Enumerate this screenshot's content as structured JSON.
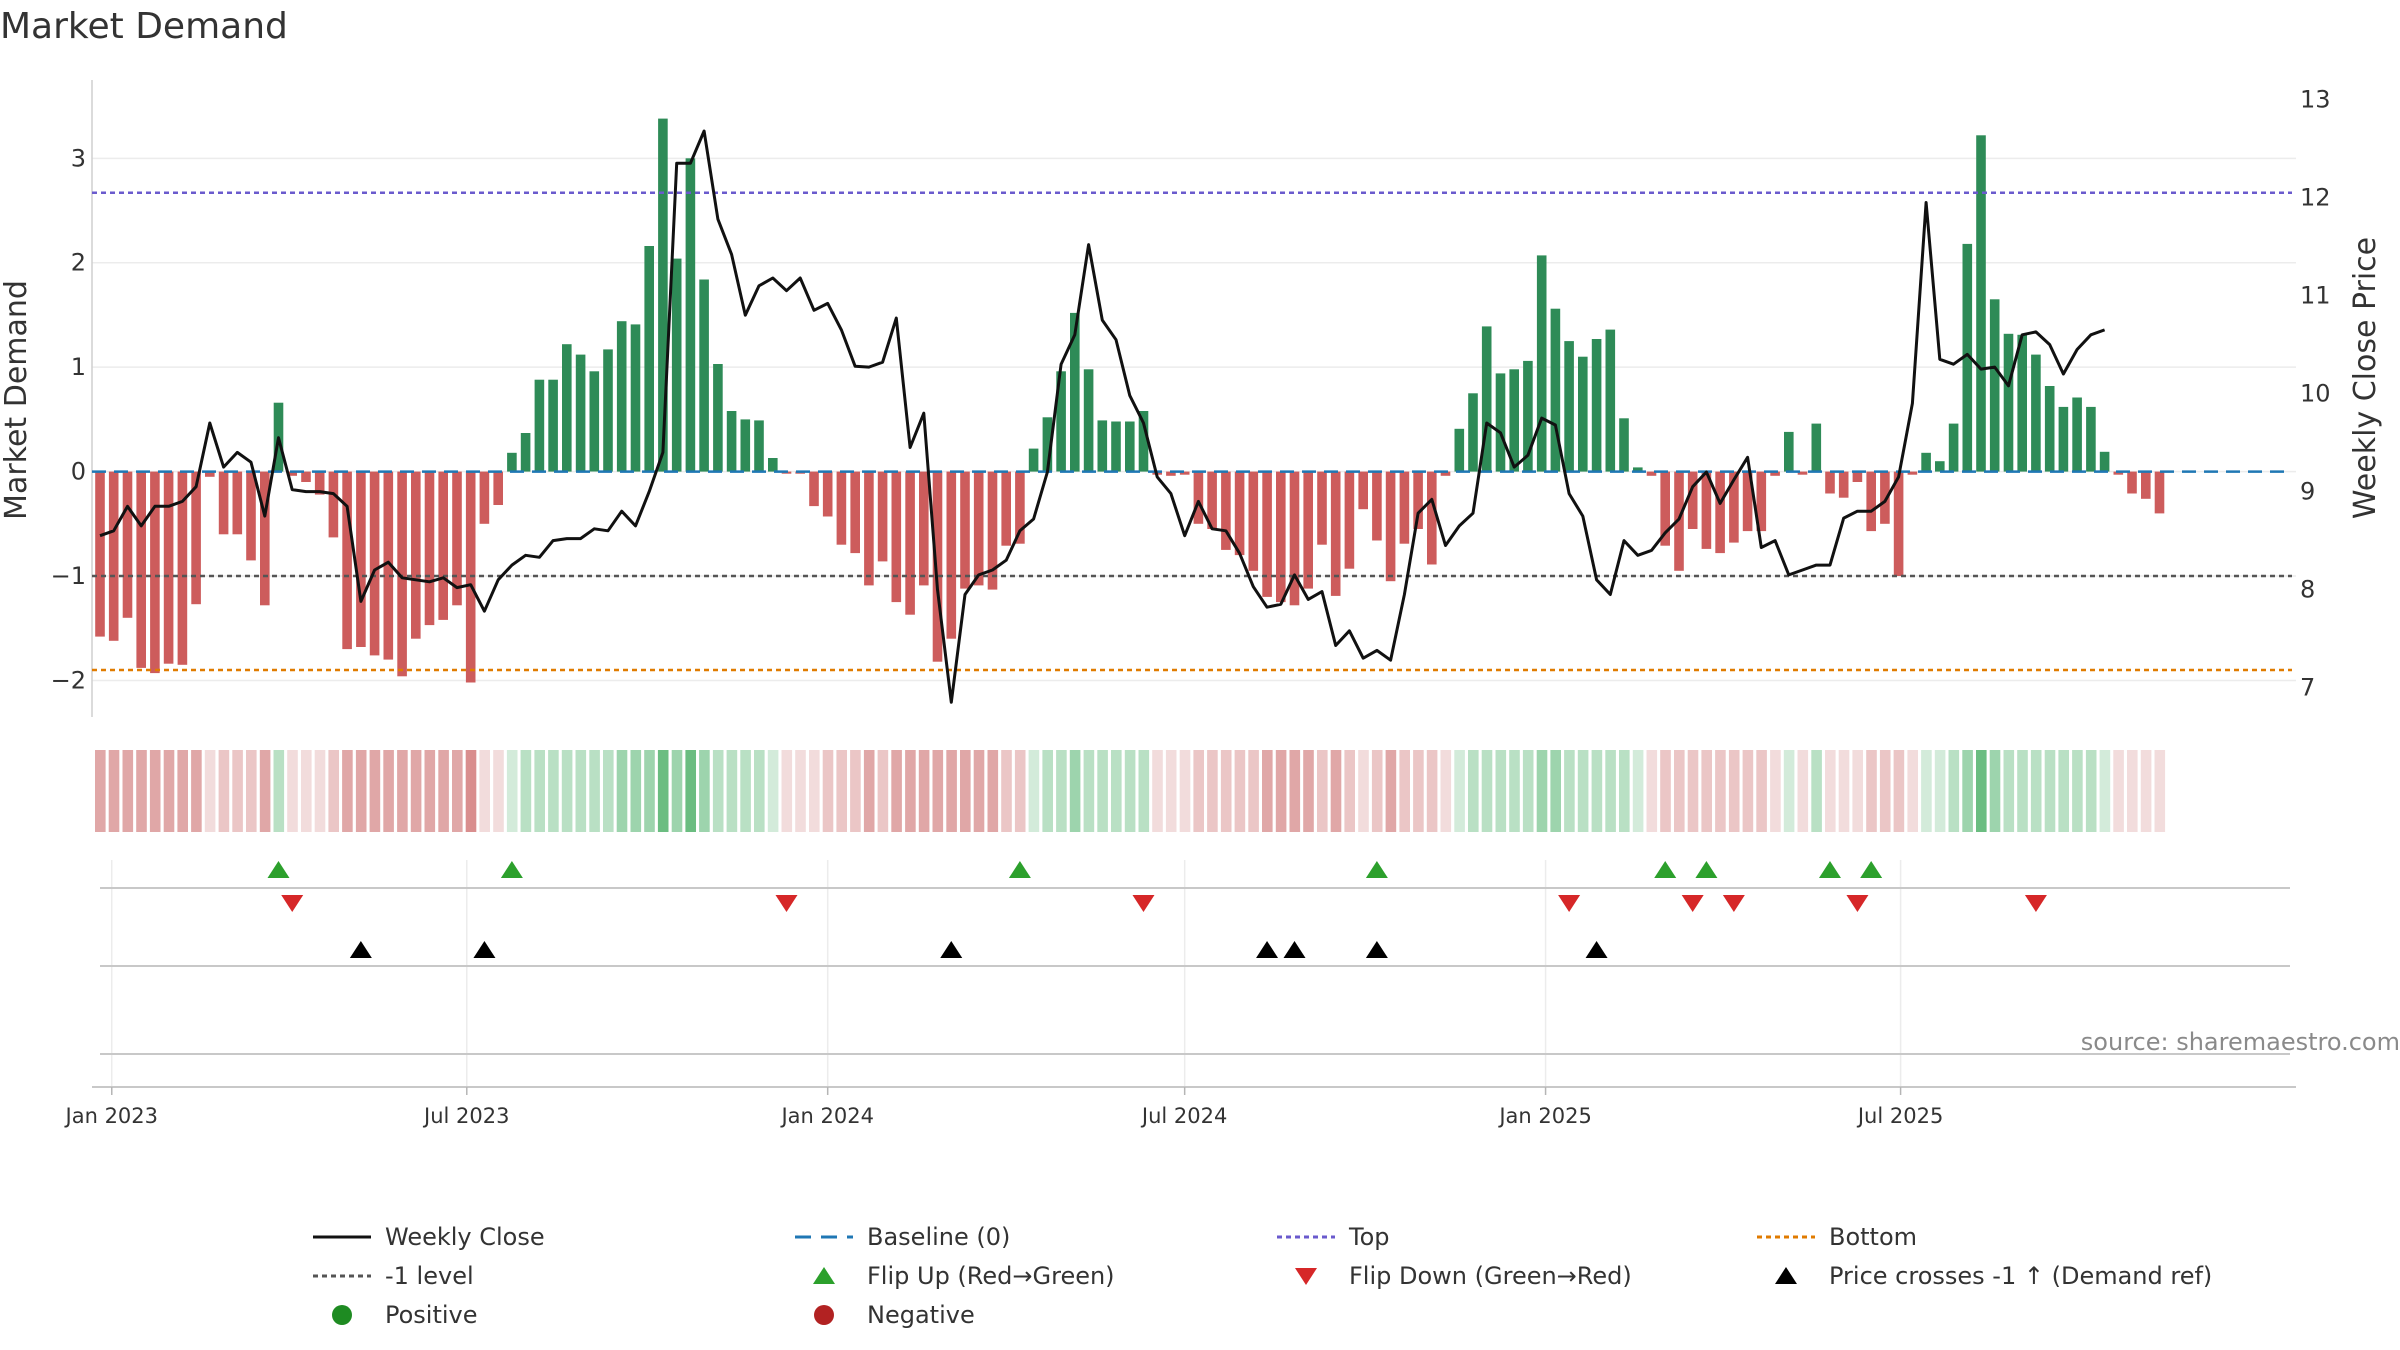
{
  "title": "Market Demand",
  "source_note": "source: sharemaestro.com",
  "colors": {
    "positive": "#2e8b57",
    "negative": "#cd5c5c",
    "price_line": "#111111",
    "baseline": "#1f77b4",
    "top_line": "#6a5acd",
    "minus1_line": "#555555",
    "bottom_line": "#e07b00",
    "flip_up": "#2ca02c",
    "flip_down": "#d62728",
    "price_cross": "#000000",
    "positive_dot": "#1e8b22",
    "negative_dot": "#b22222"
  },
  "chart_data": {
    "type": "bar+line",
    "title": "Market Demand",
    "x_start": "2022-12-26",
    "x_step_days": 7,
    "ylabel": "Market Demand",
    "ylabel_right": "Weekly Close Price",
    "ylim": [
      -2.35,
      3.75
    ],
    "ylim_right": [
      6.7,
      13.2
    ],
    "yticks": [
      3,
      2,
      1,
      0,
      -1,
      -2
    ],
    "yticks_right": [
      13,
      12,
      11,
      10,
      9,
      8,
      7
    ],
    "xticks": [
      {
        "label": "Jan 2023",
        "date": "2023-01-01"
      },
      {
        "label": "Jul 2023",
        "date": "2023-07-01"
      },
      {
        "label": "Jan 2024",
        "date": "2024-01-01"
      },
      {
        "label": "Jul 2024",
        "date": "2024-07-01"
      },
      {
        "label": "Jan 2025",
        "date": "2025-01-01"
      },
      {
        "label": "Jul 2025",
        "date": "2025-07-01"
      }
    ],
    "reference_lines": {
      "top": 2.67,
      "minus1": -1,
      "bottom": -1.9,
      "baseline": 0
    },
    "demand": [
      -1.58,
      -1.62,
      -1.4,
      -1.88,
      -1.93,
      -1.84,
      -1.85,
      -1.27,
      -0.05,
      -0.6,
      -0.6,
      -0.85,
      -1.28,
      0.66,
      -0.04,
      -0.1,
      -0.22,
      -0.63,
      -1.7,
      -1.68,
      -1.76,
      -1.8,
      -1.96,
      -1.6,
      -1.47,
      -1.42,
      -1.28,
      -2.02,
      -0.5,
      -0.32,
      0.18,
      0.37,
      0.88,
      0.88,
      1.22,
      1.12,
      0.96,
      1.17,
      1.44,
      1.41,
      2.16,
      3.38,
      2.04,
      3.0,
      1.84,
      1.03,
      0.58,
      0.5,
      0.49,
      0.13,
      -0.02,
      -0.02,
      -0.33,
      -0.43,
      -0.7,
      -0.78,
      -1.09,
      -0.86,
      -1.25,
      -1.37,
      -1.09,
      -1.82,
      -1.6,
      -1.12,
      -1.09,
      -1.13,
      -0.71,
      -0.69,
      0.22,
      0.52,
      0.96,
      1.52,
      0.98,
      0.49,
      0.48,
      0.48,
      0.58,
      -0.03,
      -0.04,
      -0.03,
      -0.5,
      -0.55,
      -0.75,
      -0.8,
      -0.95,
      -1.2,
      -1.25,
      -1.28,
      -1.12,
      -0.7,
      -1.19,
      -0.93,
      -0.36,
      -0.66,
      -1.05,
      -0.69,
      -0.55,
      -0.89,
      -0.04,
      0.41,
      0.75,
      1.39,
      0.94,
      0.98,
      1.06,
      2.07,
      1.56,
      1.25,
      1.1,
      1.27,
      1.36,
      0.51,
      0.04,
      -0.04,
      -0.71,
      -0.95,
      -0.55,
      -0.74,
      -0.78,
      -0.68,
      -0.57,
      -0.57,
      -0.04,
      0.38,
      -0.03,
      0.46,
      -0.21,
      -0.25,
      -0.1,
      -0.57,
      -0.5,
      -1.0,
      -0.03,
      0.18,
      0.1,
      0.46,
      2.18,
      3.22,
      1.65,
      1.32,
      1.31,
      1.12,
      0.82,
      0.62,
      0.71,
      0.62,
      0.19,
      -0.03,
      -0.21,
      -0.26,
      -0.4
    ],
    "price": [
      8.55,
      8.6,
      8.85,
      8.65,
      8.85,
      8.85,
      8.9,
      9.05,
      9.7,
      9.25,
      9.4,
      9.3,
      8.75,
      9.55,
      9.02,
      9.0,
      9.0,
      8.98,
      8.85,
      7.88,
      8.2,
      8.28,
      8.12,
      8.1,
      8.08,
      8.12,
      8.02,
      8.05,
      7.78,
      8.1,
      8.25,
      8.35,
      8.33,
      8.5,
      8.52,
      8.52,
      8.62,
      8.6,
      8.8,
      8.65,
      9.0,
      9.4,
      12.35,
      12.35,
      12.68,
      11.78,
      11.42,
      10.8,
      11.1,
      11.18,
      11.05,
      11.18,
      10.85,
      10.92,
      10.65,
      10.28,
      10.27,
      10.32,
      10.77,
      9.45,
      9.8,
      8.0,
      6.85,
      7.95,
      8.15,
      8.2,
      8.3,
      8.6,
      8.72,
      9.2,
      10.3,
      10.6,
      11.52,
      10.75,
      10.55,
      9.98,
      9.7,
      9.15,
      8.98,
      8.55,
      8.9,
      8.62,
      8.6,
      8.37,
      8.03,
      7.82,
      7.85,
      8.15,
      7.9,
      7.98,
      7.43,
      7.58,
      7.3,
      7.38,
      7.28,
      7.95,
      8.78,
      8.92,
      8.45,
      8.65,
      8.78,
      9.7,
      9.6,
      9.25,
      9.37,
      9.75,
      9.68,
      8.98,
      8.75,
      8.1,
      7.95,
      8.5,
      8.35,
      8.4,
      8.58,
      8.72,
      9.05,
      9.2,
      8.88,
      9.12,
      9.35,
      8.43,
      8.5,
      8.15,
      8.2,
      8.25,
      8.25,
      8.73,
      8.8,
      8.8,
      8.9,
      9.15,
      9.9,
      11.95,
      10.35,
      10.3,
      10.4,
      10.25,
      10.27,
      10.08,
      10.6,
      10.63,
      10.5,
      10.2,
      10.45,
      10.6,
      10.65
    ],
    "strip_intensity": [
      3,
      3,
      3,
      3,
      3,
      3,
      3,
      3,
      1,
      2,
      2,
      2,
      3,
      2,
      1,
      1,
      1,
      2,
      3,
      3,
      3,
      3,
      3,
      3,
      3,
      3,
      3,
      4,
      1,
      1,
      1,
      2,
      2,
      2,
      2,
      2,
      2,
      2,
      3,
      3,
      3,
      4,
      3,
      4,
      3,
      2,
      2,
      2,
      2,
      1,
      1,
      1,
      1,
      2,
      2,
      2,
      3,
      2,
      3,
      3,
      3,
      3,
      3,
      3,
      3,
      3,
      2,
      2,
      1,
      2,
      2,
      3,
      2,
      2,
      2,
      2,
      2,
      1,
      1,
      1,
      2,
      2,
      2,
      2,
      2,
      3,
      3,
      3,
      3,
      2,
      3,
      2,
      1,
      2,
      3,
      2,
      2,
      2,
      1,
      1,
      2,
      2,
      2,
      2,
      2,
      3,
      3,
      2,
      2,
      2,
      2,
      2,
      1,
      1,
      2,
      2,
      2,
      2,
      2,
      2,
      2,
      2,
      1,
      1,
      1,
      2,
      1,
      1,
      1,
      2,
      2,
      2,
      1,
      1,
      1,
      2,
      3,
      4,
      3,
      2,
      2,
      2,
      2,
      2,
      2,
      2,
      1,
      1,
      1,
      1,
      1
    ],
    "flip_up_weeks": [
      13,
      30,
      67,
      93,
      114,
      117,
      126,
      129
    ],
    "flip_down_weeks": [
      14,
      50,
      76,
      107,
      116,
      119,
      128,
      141
    ],
    "price_cross_weeks": [
      19,
      28,
      62,
      85,
      87,
      93,
      109
    ]
  },
  "legend": [
    {
      "key": "weekly_close",
      "label": "Weekly Close"
    },
    {
      "key": "baseline",
      "label": "Baseline (0)"
    },
    {
      "key": "top",
      "label": "Top"
    },
    {
      "key": "bottom",
      "label": "Bottom"
    },
    {
      "key": "minus1",
      "label": "-1 level"
    },
    {
      "key": "flip_up",
      "label": "Flip Up (Red→Green)"
    },
    {
      "key": "flip_down",
      "label": "Flip Down (Green→Red)"
    },
    {
      "key": "price_cross",
      "label": "Price crosses -1 ↑ (Demand ref)"
    },
    {
      "key": "positive",
      "label": "Positive"
    },
    {
      "key": "negative",
      "label": "Negative"
    }
  ]
}
